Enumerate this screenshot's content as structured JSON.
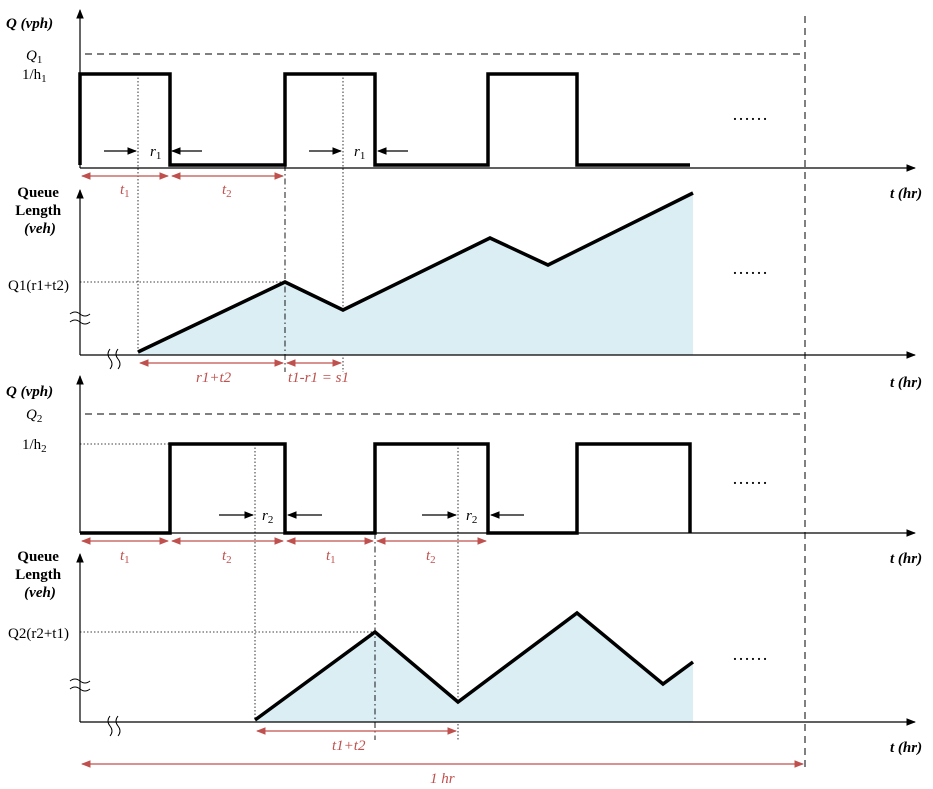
{
  "colors": {
    "accent_red": "#c0504d",
    "queue_fill": "#daeef3",
    "line": "#000000"
  },
  "panel1": {
    "y_label": "Q (vph)",
    "capacity_label_base": "Q",
    "capacity_label_sub": "1",
    "headway_label_base": "1/h",
    "headway_label_sub": "1",
    "r_label_base": "r",
    "r_label_sub": "1",
    "t1_base": "t",
    "t1_sub": "1",
    "t2_base": "t",
    "t2_sub": "2",
    "ellipsis": "……",
    "t_axis_label": "t (hr)"
  },
  "panel2": {
    "y_label_line1": "Queue",
    "y_label_line2": "Length",
    "y_label_line3": "(veh)",
    "queue_label": "Q1(r1+t2)",
    "arrow_label_a": "r1+t2",
    "arrow_label_b": "t1-r1 = s1",
    "ellipsis": "……",
    "t_axis_label": "t (hr)"
  },
  "panel3": {
    "y_label": "Q (vph)",
    "capacity_label_base": "Q",
    "capacity_label_sub": "2",
    "headway_label_base": "1/h",
    "headway_label_sub": "2",
    "r_label_base": "r",
    "r_label_sub": "2",
    "ellipsis": "……",
    "t_axis_label": "t (hr)"
  },
  "panel4": {
    "y_label_line1": "Queue",
    "y_label_line2": "Length",
    "y_label_line3": "(veh)",
    "queue_label": "Q2(r2+t1)",
    "arrow_label": "t1+t2",
    "ellipsis": "……",
    "t_axis_label": "t (hr)",
    "hour_label": "1 hr"
  }
}
